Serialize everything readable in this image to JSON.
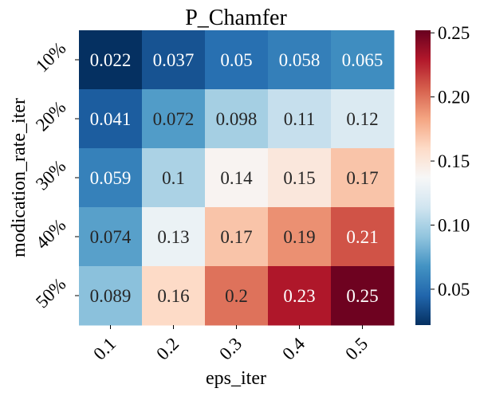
{
  "chart_data": {
    "type": "heatmap",
    "title": "P_Chamfer",
    "xlabel": "eps_iter",
    "ylabel": "modication_rate_iter",
    "x_categories": [
      "0.1",
      "0.2",
      "0.3",
      "0.4",
      "0.5"
    ],
    "y_categories": [
      "10%",
      "20%",
      "30%",
      "40%",
      "50%"
    ],
    "values": [
      [
        0.022,
        0.037,
        0.05,
        0.058,
        0.065
      ],
      [
        0.041,
        0.072,
        0.098,
        0.11,
        0.12
      ],
      [
        0.059,
        0.1,
        0.14,
        0.15,
        0.17
      ],
      [
        0.074,
        0.13,
        0.17,
        0.19,
        0.21
      ],
      [
        0.089,
        0.16,
        0.2,
        0.23,
        0.25
      ]
    ],
    "labels": [
      [
        "0.022",
        "0.037",
        "0.05",
        "0.058",
        "0.065"
      ],
      [
        "0.041",
        "0.072",
        "0.098",
        "0.11",
        "0.12"
      ],
      [
        "0.059",
        "0.1",
        "0.14",
        "0.15",
        "0.17"
      ],
      [
        "0.074",
        "0.13",
        "0.17",
        "0.19",
        "0.21"
      ],
      [
        "0.089",
        "0.16",
        "0.2",
        "0.23",
        "0.25"
      ]
    ],
    "colormap": "RdBu_r",
    "vmin": 0.022,
    "vmax": 0.252,
    "colorbar_ticks": [
      0.05,
      0.1,
      0.15,
      0.2,
      0.25
    ],
    "colorbar_tick_labels": [
      "0.05",
      "0.10",
      "0.15",
      "0.20",
      "0.25"
    ]
  }
}
